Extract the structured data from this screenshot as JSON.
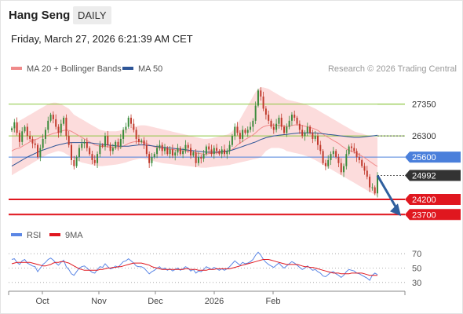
{
  "header": {
    "instrument": "Hang Seng",
    "period": "DAILY",
    "datetime": "Friday, March 27, 2026 6:21:39 AM CET"
  },
  "legend": {
    "ma20_bb": "MA 20 + Bollinger Bands",
    "ma50": "MA 50",
    "copyright": "Research © 2026 Trading Central",
    "rsi": "RSI",
    "rsi_ma": "9MA"
  },
  "colors": {
    "resistance": "#8cc63f",
    "pivot": "#4a7fdb",
    "support": "#e0171f",
    "last": "#333333",
    "band_fill": "#fbd6d6",
    "ma20": "#f08a8a",
    "ma50": "#2e5597",
    "rsi": "#5b86e5",
    "rsi_ma": "#e0171f",
    "candle_up": "#3a8a3a",
    "candle_down": "#c0392b",
    "arrow": "#2f5f9e"
  },
  "chart_data": [
    {
      "type": "candlestick",
      "name": "price",
      "x_axis_labels": [
        "Oct",
        "Nov",
        "Dec",
        "2026",
        "Feb"
      ],
      "ylim": [
        23500,
        28300
      ],
      "levels": [
        {
          "label": "27350",
          "value": 27350,
          "kind": "resistance"
        },
        {
          "label": "26300",
          "value": 26300,
          "kind": "resistance"
        },
        {
          "label": "25600",
          "value": 25600,
          "kind": "pivot"
        },
        {
          "label": "24992",
          "value": 24992,
          "kind": "last"
        },
        {
          "label": "24200",
          "value": 24200,
          "kind": "support"
        },
        {
          "label": "23700",
          "value": 23700,
          "kind": "support"
        }
      ],
      "close": [
        26550,
        26750,
        26400,
        26100,
        26450,
        26600,
        26300,
        26200,
        26050,
        26000,
        25600,
        25900,
        26200,
        26500,
        26800,
        27000,
        26850,
        26600,
        26400,
        26700,
        26900,
        26300,
        26000,
        25500,
        25300,
        25600,
        25900,
        26050,
        26100,
        25900,
        25700,
        25500,
        25400,
        25700,
        26000,
        25950,
        26300,
        26000,
        25800,
        25900,
        26100,
        25950,
        26200,
        26500,
        26600,
        26900,
        26700,
        26500,
        26200,
        26100,
        26150,
        26000,
        25700,
        25400,
        25600,
        25700,
        25900,
        26000,
        25800,
        25900,
        25700,
        25850,
        25650,
        25750,
        25900,
        25700,
        25800,
        26000,
        25900,
        25650,
        25750,
        25400,
        25600,
        25550,
        25700,
        25950,
        25850,
        25700,
        25900,
        25800,
        25700,
        25850,
        25700,
        25800,
        26000,
        26300,
        26600,
        26400,
        26200,
        26500,
        26400,
        26500,
        26600,
        26800,
        27300,
        27800,
        27600,
        27200,
        27000,
        26800,
        26600,
        26500,
        26700,
        26900,
        26600,
        26400,
        26600,
        26800,
        27000,
        26900,
        26700,
        26500,
        26300,
        26400,
        26600,
        26400,
        26200,
        26300,
        26000,
        25800,
        25400,
        25300,
        25500,
        25700,
        25800,
        25600,
        25400,
        25100,
        25300,
        25700,
        25950,
        25900,
        25800,
        25600,
        25500,
        25300,
        25150,
        24950,
        24600,
        24600,
        24400,
        24992
      ],
      "ma20": [
        25800,
        25850,
        25880,
        25900,
        25950,
        26000,
        26050,
        26100,
        26150,
        26180,
        26200,
        26250,
        26280,
        26300,
        26320,
        26350,
        26380,
        26400,
        26420,
        26450,
        26480,
        26490,
        26480,
        26450,
        26400,
        26350,
        26300,
        26250,
        26200,
        26150,
        26100,
        26050,
        26000,
        25980,
        25960,
        25950,
        25950,
        25940,
        25930,
        25920,
        25910,
        25900,
        25920,
        25960,
        26000,
        26050,
        26080,
        26100,
        26110,
        26110,
        26100,
        26080,
        26050,
        26000,
        25970,
        25940,
        25920,
        25900,
        25880,
        25870,
        25860,
        25850,
        25850,
        25840,
        25830,
        25820,
        25810,
        25800,
        25790,
        25780,
        25760,
        25740,
        25720,
        25710,
        25700,
        25700,
        25710,
        25720,
        25730,
        25740,
        25750,
        25760,
        25770,
        25780,
        25800,
        25850,
        25920,
        26000,
        26060,
        26120,
        26180,
        26230,
        26280,
        26330,
        26400,
        26480,
        26550,
        26600,
        26630,
        26650,
        26660,
        26660,
        26650,
        26650,
        26640,
        26620,
        26610,
        26620,
        26640,
        26660,
        26670,
        26660,
        26640,
        26620,
        26600,
        26580,
        26550,
        26520,
        26480,
        26420,
        26360,
        26300,
        26250,
        26200,
        26150,
        26100,
        26050,
        25980,
        25920,
        25860,
        25820,
        25790,
        25760,
        25720,
        25680,
        25630,
        25580,
        25520,
        25460,
        25400,
        25340,
        25290
      ],
      "ma50": [
        25300,
        25350,
        25400,
        25450,
        25500,
        25550,
        25600,
        25640,
        25680,
        25720,
        25760,
        25800,
        25830,
        25860,
        25890,
        25920,
        25950,
        25980,
        26000,
        26020,
        26040,
        26060,
        26070,
        26080,
        26080,
        26080,
        26080,
        26080,
        26080,
        26080,
        26070,
        26060,
        26050,
        26040,
        26030,
        26020,
        26010,
        26000,
        25990,
        25980,
        25970,
        25960,
        25960,
        25960,
        25960,
        25960,
        25970,
        25980,
        25990,
        26000,
        26000,
        26000,
        25990,
        25980,
        25970,
        25960,
        25950,
        25940,
        25930,
        25920,
        25910,
        25900,
        25890,
        25880,
        25870,
        25860,
        25850,
        25840,
        25830,
        25820,
        25810,
        25800,
        25790,
        25780,
        25770,
        25760,
        25760,
        25760,
        25760,
        25760,
        25770,
        25780,
        25790,
        25800,
        25810,
        25830,
        25860,
        25890,
        25920,
        25950,
        25980,
        26010,
        26040,
        26070,
        26100,
        26140,
        26180,
        26210,
        26240,
        26260,
        26280,
        26300,
        26310,
        26320,
        26330,
        26340,
        26350,
        26360,
        26370,
        26380,
        26390,
        26400,
        26400,
        26400,
        26400,
        26400,
        26400,
        26400,
        26390,
        26380,
        26370,
        26360,
        26350,
        26340,
        26330,
        26320,
        26310,
        26300,
        26290,
        26280,
        26270,
        26260,
        26250,
        26250,
        26250,
        26260,
        26270,
        26280,
        26290,
        26300,
        26310,
        26320
      ],
      "bb_upper": [
        26500,
        26600,
        26700,
        26800,
        26850,
        26900,
        26950,
        27000,
        27050,
        27100,
        27150,
        27200,
        27250,
        27300,
        27350,
        27380,
        27400,
        27400,
        27380,
        27350,
        27300,
        27250,
        27200,
        27100,
        27000,
        26950,
        26900,
        26850,
        26800,
        26750,
        26700,
        26650,
        26600,
        26550,
        26500,
        26480,
        26460,
        26450,
        26450,
        26450,
        26450,
        26460,
        26480,
        26500,
        26520,
        26550,
        26580,
        26600,
        26620,
        26640,
        26650,
        26650,
        26640,
        26620,
        26600,
        26580,
        26560,
        26540,
        26520,
        26500,
        26480,
        26460,
        26440,
        26420,
        26400,
        26380,
        26360,
        26340,
        26320,
        26300,
        26280,
        26260,
        26240,
        26220,
        26200,
        26200,
        26210,
        26220,
        26240,
        26260,
        26280,
        26300,
        26320,
        26340,
        26380,
        26450,
        26550,
        26700,
        26850,
        27000,
        27150,
        27300,
        27450,
        27600,
        27750,
        27850,
        27900,
        27900,
        27880,
        27850,
        27800,
        27750,
        27700,
        27650,
        27600,
        27550,
        27500,
        27480,
        27460,
        27440,
        27420,
        27400,
        27380,
        27350,
        27320,
        27280,
        27240,
        27200,
        27150,
        27100,
        27050,
        27000,
        26950,
        26900,
        26850,
        26800,
        26750,
        26700,
        26650,
        26600,
        26550,
        26500,
        26450,
        26420,
        26400,
        26380,
        26350,
        26320,
        26300,
        26280,
        26260,
        26250
      ],
      "bb_lower": [
        25000,
        25050,
        25100,
        25150,
        25200,
        25250,
        25300,
        25350,
        25400,
        25450,
        25500,
        25550,
        25600,
        25650,
        25700,
        25720,
        25750,
        25780,
        25800,
        25780,
        25750,
        25700,
        25650,
        25600,
        25550,
        25500,
        25450,
        25420,
        25400,
        25380,
        25360,
        25340,
        25320,
        25300,
        25300,
        25300,
        25310,
        25320,
        25330,
        25340,
        25350,
        25360,
        25380,
        25400,
        25420,
        25450,
        25480,
        25500,
        25520,
        25540,
        25550,
        25540,
        25520,
        25500,
        25480,
        25460,
        25440,
        25420,
        25400,
        25390,
        25380,
        25370,
        25360,
        25350,
        25340,
        25330,
        25320,
        25310,
        25300,
        25290,
        25280,
        25270,
        25260,
        25250,
        25250,
        25250,
        25260,
        25270,
        25280,
        25290,
        25300,
        25310,
        25320,
        25330,
        25340,
        25360,
        25380,
        25400,
        25420,
        25440,
        25460,
        25480,
        25500,
        25520,
        25540,
        25560,
        25600,
        25700,
        25800,
        25850,
        25900,
        25900,
        25900,
        25900,
        25880,
        25850,
        25800,
        25780,
        25760,
        25740,
        25720,
        25700,
        25680,
        25650,
        25620,
        25580,
        25540,
        25500,
        25450,
        25400,
        25350,
        25300,
        25250,
        25200,
        25150,
        25100,
        25050,
        25000,
        24950,
        24900,
        24850,
        24800,
        24750,
        24700,
        24650,
        24600,
        24550,
        24500,
        24450,
        24400,
        24350,
        24300
      ]
    },
    {
      "type": "line",
      "name": "rsi",
      "ylim": [
        20,
        80
      ],
      "yticks": [
        "70",
        "50",
        "30"
      ],
      "rsi": [
        62,
        63,
        58,
        55,
        60,
        62,
        57,
        55,
        53,
        52,
        45,
        50,
        55,
        58,
        62,
        64,
        61,
        57,
        54,
        58,
        61,
        52,
        48,
        42,
        40,
        45,
        50,
        52,
        53,
        50,
        47,
        44,
        43,
        48,
        52,
        51,
        56,
        52,
        49,
        50,
        53,
        51,
        55,
        59,
        60,
        63,
        60,
        57,
        53,
        52,
        52,
        50,
        46,
        42,
        45,
        47,
        50,
        52,
        48,
        50,
        47,
        49,
        46,
        48,
        50,
        47,
        49,
        52,
        50,
        46,
        48,
        43,
        46,
        45,
        48,
        52,
        50,
        48,
        51,
        49,
        47,
        49,
        47,
        49,
        52,
        56,
        60,
        57,
        54,
        58,
        56,
        57,
        59,
        62,
        68,
        72,
        68,
        62,
        58,
        55,
        53,
        51,
        54,
        57,
        53,
        50,
        53,
        56,
        59,
        57,
        54,
        51,
        48,
        50,
        53,
        50,
        47,
        48,
        45,
        43,
        39,
        38,
        41,
        44,
        45,
        42,
        40,
        37,
        40,
        45,
        48,
        47,
        46,
        43,
        42,
        40,
        38,
        36,
        33,
        40,
        43,
        41
      ],
      "rsi_ma": [
        56,
        57,
        58,
        58,
        58,
        58,
        58,
        58,
        57,
        56,
        55,
        54,
        53,
        53,
        54,
        55,
        57,
        58,
        58,
        59,
        59,
        58,
        57,
        55,
        53,
        51,
        49,
        48,
        47,
        47,
        47,
        47,
        47,
        47,
        48,
        48,
        49,
        50,
        50,
        51,
        51,
        52,
        52,
        53,
        54,
        55,
        56,
        57,
        57,
        57,
        57,
        56,
        55,
        54,
        52,
        51,
        50,
        49,
        48,
        48,
        48,
        48,
        48,
        48,
        48,
        48,
        48,
        49,
        49,
        48,
        48,
        48,
        47,
        47,
        47,
        47,
        48,
        48,
        48,
        49,
        49,
        49,
        49,
        49,
        49,
        50,
        51,
        52,
        53,
        54,
        55,
        56,
        57,
        58,
        59,
        60,
        61,
        62,
        62,
        62,
        61,
        60,
        59,
        58,
        57,
        56,
        55,
        55,
        55,
        55,
        55,
        54,
        53,
        52,
        52,
        51,
        51,
        50,
        49,
        48,
        47,
        46,
        45,
        44,
        43,
        43,
        43,
        42,
        42,
        42,
        42,
        43,
        43,
        43,
        43,
        43,
        42,
        41,
        40,
        40,
        40,
        40
      ]
    }
  ]
}
